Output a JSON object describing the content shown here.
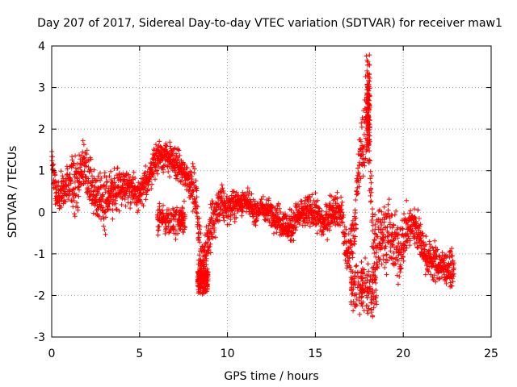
{
  "chart_data": {
    "type": "scatter",
    "title": "Day 207 of 2017, Sidereal Day-to-day VTEC variation (SDTVAR) for receiver maw1",
    "xlabel": "GPS time / hours",
    "ylabel": "SDTVAR / TECUs",
    "xlim": [
      0,
      25
    ],
    "ylim": [
      -3,
      4
    ],
    "xticks": [
      "0",
      "5",
      "10",
      "15",
      "20",
      "25"
    ],
    "yticks": [
      "-3",
      "-2",
      "-1",
      "0",
      "1",
      "2",
      "3",
      "4"
    ],
    "grid": true,
    "marker": "+",
    "series": [
      {
        "name": "maw1",
        "color": "#ff0000",
        "profile": [
          [
            0.0,
            1.6,
            0.25
          ],
          [
            0.1,
            0.8,
            0.4
          ],
          [
            0.3,
            0.4,
            0.4
          ],
          [
            0.6,
            0.5,
            0.4
          ],
          [
            1.0,
            0.6,
            0.55
          ],
          [
            1.4,
            0.7,
            0.7
          ],
          [
            1.8,
            1.1,
            0.75
          ],
          [
            2.2,
            0.7,
            0.6
          ],
          [
            2.6,
            0.4,
            0.6
          ],
          [
            3.0,
            0.3,
            0.75
          ],
          [
            3.4,
            0.4,
            0.6
          ],
          [
            3.8,
            0.6,
            0.5
          ],
          [
            4.2,
            0.7,
            0.4
          ],
          [
            4.6,
            0.5,
            0.4
          ],
          [
            5.0,
            0.4,
            0.35
          ],
          [
            5.4,
            0.7,
            0.4
          ],
          [
            5.8,
            1.2,
            0.4
          ],
          [
            6.2,
            1.4,
            0.4
          ],
          [
            6.6,
            1.3,
            0.4
          ],
          [
            7.0,
            1.2,
            0.4
          ],
          [
            7.4,
            1.0,
            0.4
          ],
          [
            7.8,
            0.8,
            0.4
          ],
          [
            8.2,
            0.4,
            0.6
          ],
          [
            8.5,
            -1.2,
            0.6
          ],
          [
            8.8,
            -0.8,
            0.6
          ],
          [
            9.2,
            -0.2,
            0.6
          ],
          [
            9.6,
            0.2,
            0.45
          ],
          [
            10.0,
            0.1,
            0.35
          ],
          [
            10.5,
            0.2,
            0.35
          ],
          [
            11.0,
            0.3,
            0.3
          ],
          [
            11.5,
            0.0,
            0.3
          ],
          [
            12.0,
            0.1,
            0.3
          ],
          [
            12.5,
            0.0,
            0.3
          ],
          [
            13.0,
            -0.2,
            0.4
          ],
          [
            13.5,
            -0.4,
            0.4
          ],
          [
            14.0,
            -0.1,
            0.4
          ],
          [
            14.5,
            0.0,
            0.4
          ],
          [
            15.0,
            0.0,
            0.4
          ],
          [
            15.5,
            -0.3,
            0.4
          ],
          [
            16.0,
            0.1,
            0.4
          ],
          [
            16.5,
            0.0,
            0.4
          ],
          [
            16.8,
            -1.2,
            0.6
          ],
          [
            17.2,
            -0.4,
            0.6
          ],
          [
            17.6,
            1.5,
            0.8
          ],
          [
            18.0,
            2.2,
            1.2
          ],
          [
            18.3,
            -1.0,
            1.0
          ],
          [
            18.7,
            -0.5,
            0.8
          ],
          [
            19.2,
            -0.5,
            0.8
          ],
          [
            19.7,
            -1.0,
            0.8
          ],
          [
            20.2,
            -0.4,
            0.6
          ],
          [
            20.7,
            -0.3,
            0.6
          ],
          [
            21.2,
            -1.0,
            0.4
          ],
          [
            21.7,
            -1.2,
            0.5
          ],
          [
            22.2,
            -1.3,
            0.4
          ],
          [
            22.9,
            -1.4,
            0.4
          ]
        ],
        "dip_bands": [
          [
            6.0,
            7.6,
            -0.2,
            0.35
          ],
          [
            8.3,
            8.9,
            -1.6,
            0.35
          ],
          [
            17.0,
            18.5,
            -1.8,
            0.7
          ]
        ],
        "peaks": [
          [
            17.9,
            18.1,
            2.6,
            1.2
          ]
        ]
      }
    ]
  }
}
